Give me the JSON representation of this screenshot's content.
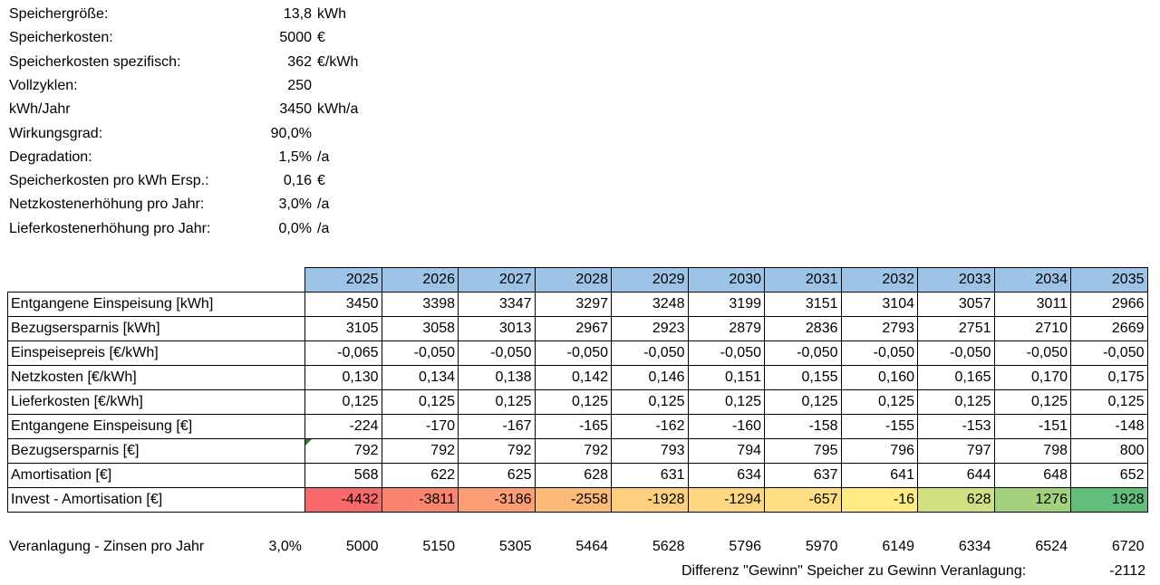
{
  "params": [
    {
      "label": "Speichergröße:",
      "value": "13,8",
      "unit": "kWh"
    },
    {
      "label": "Speicherkosten:",
      "value": "5000",
      "unit": "€"
    },
    {
      "label": "Speicherkosten spezifisch:",
      "value": "362",
      "unit": "€/kWh"
    },
    {
      "label": "Vollzyklen:",
      "value": "250",
      "unit": ""
    },
    {
      "label": "kWh/Jahr",
      "value": "3450",
      "unit": "kWh/a"
    },
    {
      "label": "Wirkungsgrad:",
      "value": "90,0%",
      "unit": ""
    },
    {
      "label": "Degradation:",
      "value": "1,5%",
      "unit": "/a"
    },
    {
      "label": "Speicherkosten pro kWh Ersp.:",
      "value": "0,16",
      "unit": "€"
    },
    {
      "label": "Netzkostenerhöhung pro Jahr:",
      "value": "3,0%",
      "unit": "/a"
    },
    {
      "label": "Lieferkostenerhöhung pro Jahr:",
      "value": "0,0%",
      "unit": "/a"
    }
  ],
  "table": {
    "years": [
      "2025",
      "2026",
      "2027",
      "2028",
      "2029",
      "2030",
      "2031",
      "2032",
      "2033",
      "2034",
      "2035"
    ],
    "rows": [
      {
        "label": "Entgangene Einspeisung [kWh]",
        "values": [
          "3450",
          "3398",
          "3347",
          "3297",
          "3248",
          "3199",
          "3151",
          "3104",
          "3057",
          "3011",
          "2966"
        ]
      },
      {
        "label": "Bezugsersparnis [kWh]",
        "values": [
          "3105",
          "3058",
          "3013",
          "2967",
          "2923",
          "2879",
          "2836",
          "2793",
          "2751",
          "2710",
          "2669"
        ]
      },
      {
        "label": "Einspeisepreis [€/kWh]",
        "values": [
          "-0,065",
          "-0,050",
          "-0,050",
          "-0,050",
          "-0,050",
          "-0,050",
          "-0,050",
          "-0,050",
          "-0,050",
          "-0,050",
          "-0,050"
        ]
      },
      {
        "label": "Netzkosten [€/kWh]",
        "values": [
          "0,130",
          "0,134",
          "0,138",
          "0,142",
          "0,146",
          "0,151",
          "0,155",
          "0,160",
          "0,165",
          "0,170",
          "0,175"
        ]
      },
      {
        "label": "Lieferkosten [€/kWh]",
        "values": [
          "0,125",
          "0,125",
          "0,125",
          "0,125",
          "0,125",
          "0,125",
          "0,125",
          "0,125",
          "0,125",
          "0,125",
          "0,125"
        ]
      },
      {
        "label": "Entgangene Einspeisung [€]",
        "values": [
          "-224",
          "-170",
          "-167",
          "-165",
          "-162",
          "-160",
          "-158",
          "-155",
          "-153",
          "-151",
          "-148"
        ]
      },
      {
        "label": "Bezugsersparnis [€]",
        "values": [
          "792",
          "792",
          "792",
          "792",
          "793",
          "794",
          "795",
          "796",
          "797",
          "798",
          "800"
        ]
      },
      {
        "label": "Amortisation [€]",
        "values": [
          "568",
          "622",
          "625",
          "628",
          "631",
          "634",
          "637",
          "641",
          "644",
          "648",
          "652"
        ]
      },
      {
        "label": "Invest - Amortisation [€]",
        "values": [
          "-4432",
          "-3811",
          "-3186",
          "-2558",
          "-1928",
          "-1294",
          "-657",
          "-16",
          "628",
          "1276",
          "1928"
        ],
        "colors": [
          "#f8696b",
          "#f98470",
          "#fa9e75",
          "#fbb97a",
          "#fcd07e",
          "#fdd880",
          "#fede82",
          "#ffeb84",
          "#d2df82",
          "#a4d17e",
          "#63be7b"
        ]
      }
    ]
  },
  "veranlagung": {
    "label": "Veranlagung - Zinsen pro Jahr",
    "rate": "3,0%",
    "values": [
      "5000",
      "5150",
      "5305",
      "5464",
      "5628",
      "5796",
      "5970",
      "6149",
      "6334",
      "6524",
      "6720"
    ]
  },
  "difference": {
    "label": "Differenz \"Gewinn\" Speicher zu Gewinn Veranlagung:",
    "value": "-2112"
  }
}
